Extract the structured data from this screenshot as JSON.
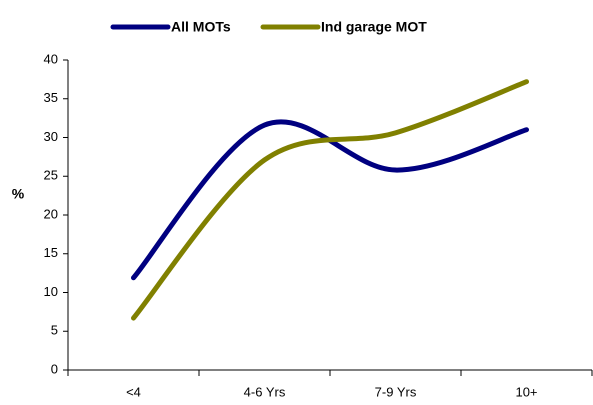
{
  "chart_data": {
    "type": "line",
    "categories": [
      "<4",
      "4-6 Yrs",
      "7-9 Yrs",
      "10+"
    ],
    "series": [
      {
        "name": "All MOTs",
        "color": "#000080",
        "values": [
          11.9,
          31.6,
          25.8,
          31
        ]
      },
      {
        "name": "Ind garage MOT",
        "color": "#808000",
        "values": [
          6.7,
          27.1,
          30.6,
          37.2
        ]
      }
    ],
    "y_label": "%",
    "ylim": [
      0,
      40
    ],
    "yticks": [
      0,
      5,
      10,
      15,
      20,
      25,
      30,
      35,
      40
    ],
    "smooth": true,
    "grid": false,
    "legend": "top"
  }
}
